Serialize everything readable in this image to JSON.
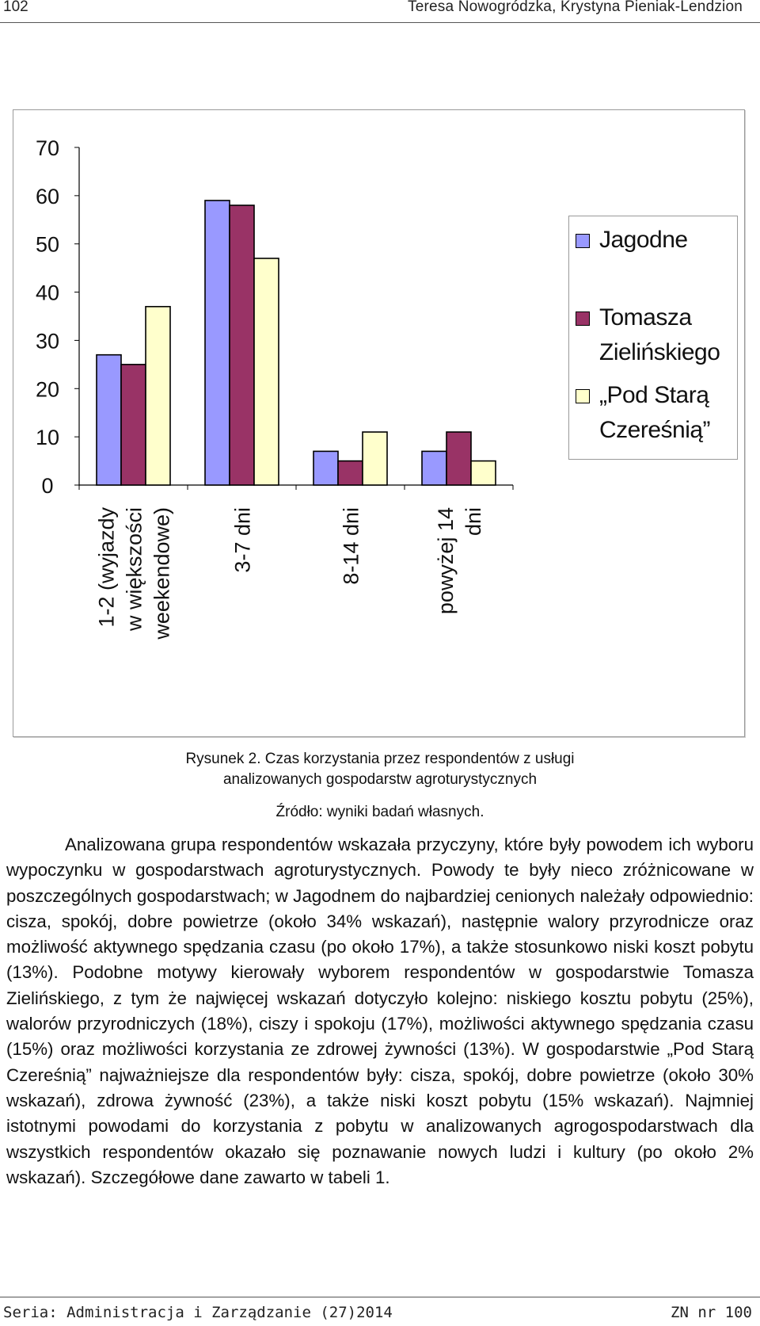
{
  "header": {
    "page_number": "102",
    "running_title": "Teresa Nowogródzka, Krystyna Pieniak-Lendzion"
  },
  "chart_data": {
    "type": "bar",
    "categories": [
      [
        "1-2 (wyjazdy",
        "w większości",
        "weekendowe)"
      ],
      [
        "3-7 dni"
      ],
      [
        "8-14 dni"
      ],
      [
        "powyżej 14",
        "dni"
      ]
    ],
    "series": [
      {
        "name": "Jagodne",
        "values": [
          27,
          59,
          7,
          7
        ],
        "color": "#9999ff"
      },
      {
        "name": "Tomasza Zielińskiego",
        "values": [
          25,
          58,
          5,
          11
        ],
        "color": "#993366"
      },
      {
        "name": "„Pod Starą Czereśnią”",
        "values": [
          37,
          47,
          11,
          5
        ],
        "color": "#ffffcc"
      }
    ],
    "yticks": [
      "0",
      "10",
      "20",
      "30",
      "40",
      "50",
      "60",
      "70"
    ],
    "ylim": [
      0,
      70
    ],
    "legend": [
      {
        "label": "Jagodne",
        "color": "#9999ff"
      },
      {
        "label": "Tomasza\nZielińskiego",
        "color": "#993366"
      },
      {
        "label": "„Pod Starą\nCzereśnią”",
        "color": "#ffffcc"
      }
    ],
    "legend_position": "right",
    "grid": false
  },
  "figure": {
    "caption_line1": "Rysunek 2. Czas korzystania przez respondentów z usługi",
    "caption_line2": "analizowanych gospodarstw agroturystycznych",
    "source": "Źródło: wyniki badań własnych."
  },
  "body": {
    "paragraph": "Analizowana grupa respondentów wskazała przyczyny, które były powo­dem ich wyboru wypoczynku w gospodarstwach agroturystycznych. Powody te były nieco zróżnicowane w poszczególnych gospodarstwach; w Jagodnem do najbardziej cenionych należały odpowiednio: cisza, spokój, dobre powietrze (około 34% wskazań), następnie walory przyrodnicze oraz możliwość aktyw­nego spędzania czasu (po około 17%), a także stosunkowo niski koszt pobytu (13%). Podobne motywy kierowały wyborem respondentów w gospodarstwie Tomasza Zielińskiego, z tym że najwięcej wskazań dotyczyło kolejno: niskiego kosztu pobytu (25%), walorów przyrodniczych (18%), ciszy i spokoju (17%), możliwości aktywnego spędzania czasu (15%) oraz możliwości korzystania ze zdrowej żywności (13%). W gospodarstwie „Pod Starą Czereśnią” najważniej­sze dla respondentów były: cisza, spokój, dobre powietrze (około 30% wska­zań), zdrowa żywność (23%), a także niski koszt pobytu (15% wskazań). Naj­mniej istotnymi powodami do korzystania z pobytu w analizowanych agro­gospodarstwach dla wszystkich respondentów okazało się poznawanie nowych ludzi i kultury (po około 2% wskazań). Szczegółowe dane zawarto w tabeli 1."
  },
  "footer": {
    "series": "Seria: Administracja i Zarządzanie (27)2014",
    "issue": "ZN nr 100"
  }
}
